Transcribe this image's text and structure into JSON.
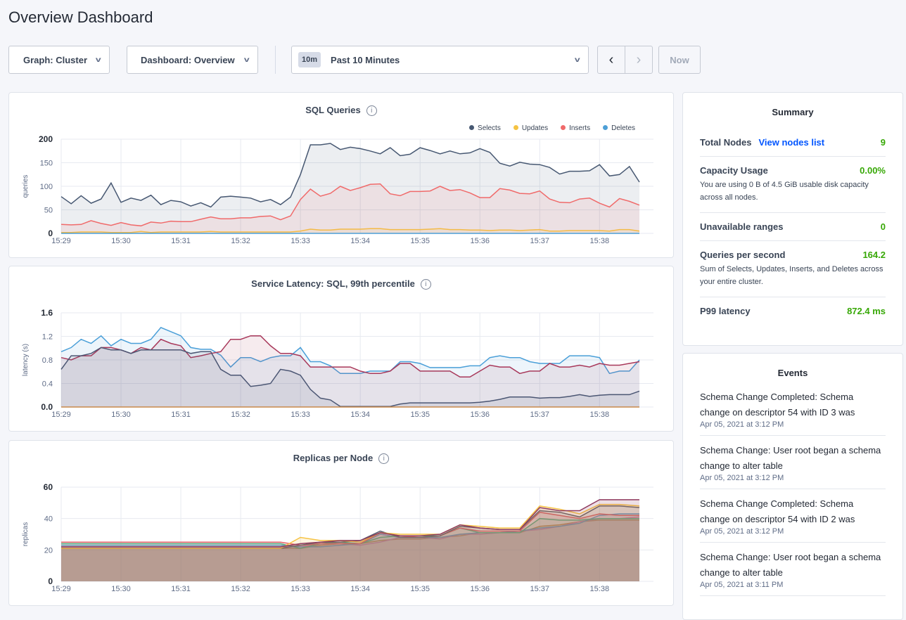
{
  "page_title": "Overview Dashboard",
  "controls": {
    "graph_label": "Graph: Cluster",
    "dashboard_label": "Dashboard: Overview",
    "time_badge": "10m",
    "time_label": "Past 10 Minutes",
    "prev": "‹",
    "next": "›",
    "now_label": "Now"
  },
  "summary": {
    "title": "Summary",
    "total_nodes": {
      "label": "Total Nodes",
      "link": "View nodes list",
      "value": "9"
    },
    "capacity": {
      "label": "Capacity Usage",
      "value": "0.00%",
      "desc": "You are using 0 B of 4.5 GiB usable disk capacity across all nodes."
    },
    "unavailable": {
      "label": "Unavailable ranges",
      "value": "0"
    },
    "qps": {
      "label": "Queries per second",
      "value": "164.2",
      "desc": "Sum of Selects, Updates, Inserts, and Deletes across your entire cluster."
    },
    "p99": {
      "label": "P99 latency",
      "value": "872.4 ms"
    }
  },
  "events": {
    "title": "Events",
    "items": [
      {
        "text": "Schema Change Completed: Schema change on descriptor 54 with ID 3 was",
        "date": "Apr 05, 2021 at 3:12 PM"
      },
      {
        "text": "Schema Change: User root began a schema change to alter table",
        "date": "Apr 05, 2021 at 3:12 PM"
      },
      {
        "text": "Schema Change Completed: Schema change on descriptor 54 with ID 2 was",
        "date": "Apr 05, 2021 at 3:12 PM"
      },
      {
        "text": "Schema Change: User root began a schema change to alter table",
        "date": "Apr 05, 2021 at 3:11 PM"
      }
    ]
  },
  "chart_data": [
    {
      "type": "area",
      "title": "SQL Queries",
      "ylabel": "queries",
      "xlim": [
        "15:29:00",
        "15:38:40"
      ],
      "ylim": [
        0,
        200
      ],
      "yticks": [
        0,
        50,
        100,
        150,
        200
      ],
      "xticks": [
        "15:29",
        "15:30",
        "15:31",
        "15:32",
        "15:33",
        "15:34",
        "15:35",
        "15:36",
        "15:37",
        "15:38"
      ],
      "grid": true,
      "legend": "top-right",
      "x": [
        "15:29:00",
        "15:29:10",
        "15:29:20",
        "15:29:30",
        "15:29:40",
        "15:29:50",
        "15:30:00",
        "15:30:10",
        "15:30:20",
        "15:30:30",
        "15:30:40",
        "15:30:50",
        "15:31:00",
        "15:31:10",
        "15:31:20",
        "15:31:30",
        "15:31:40",
        "15:31:50",
        "15:32:00",
        "15:32:10",
        "15:32:20",
        "15:32:30",
        "15:32:40",
        "15:32:50",
        "15:33:00",
        "15:33:10",
        "15:33:20",
        "15:33:30",
        "15:33:40",
        "15:33:50",
        "15:34:00",
        "15:34:10",
        "15:34:20",
        "15:34:30",
        "15:34:40",
        "15:34:50",
        "15:35:00",
        "15:35:10",
        "15:35:20",
        "15:35:30",
        "15:35:40",
        "15:35:50",
        "15:36:00",
        "15:36:10",
        "15:36:20",
        "15:36:30",
        "15:36:40",
        "15:36:50",
        "15:37:00",
        "15:37:10",
        "15:37:20",
        "15:37:30",
        "15:37:40",
        "15:37:50",
        "15:38:00",
        "15:38:10",
        "15:38:20",
        "15:38:30",
        "15:38:40"
      ],
      "series": [
        {
          "name": "Selects",
          "color": "#475872",
          "values": [
            78,
            63,
            80,
            64,
            73,
            107,
            66,
            75,
            70,
            81,
            61,
            70,
            67,
            58,
            65,
            56,
            77,
            79,
            77,
            75,
            67,
            72,
            61,
            77,
            125,
            188,
            188,
            191,
            178,
            183,
            180,
            175,
            169,
            182,
            165,
            168,
            182,
            176,
            169,
            175,
            169,
            171,
            180,
            172,
            149,
            143,
            151,
            147,
            146,
            140,
            126,
            132,
            132,
            133,
            146,
            122,
            125,
            142,
            109
          ]
        },
        {
          "name": "Updates",
          "color": "#f5c342",
          "values": [
            2,
            2,
            3,
            3,
            3,
            2,
            2,
            2,
            4,
            2,
            3,
            3,
            3,
            3,
            3,
            4,
            3,
            3,
            3,
            3,
            3,
            3,
            3,
            3,
            5,
            9,
            7,
            7,
            9,
            9,
            9,
            10,
            10,
            8,
            8,
            8,
            8,
            9,
            10,
            8,
            8,
            7,
            7,
            6,
            7,
            7,
            6,
            7,
            8,
            5,
            5,
            6,
            6,
            6,
            6,
            5,
            8,
            8,
            5
          ]
        },
        {
          "name": "Inserts",
          "color": "#f06a6a",
          "values": [
            19,
            18,
            19,
            27,
            21,
            17,
            23,
            18,
            16,
            24,
            22,
            26,
            25,
            25,
            30,
            35,
            31,
            31,
            33,
            33,
            36,
            37,
            29,
            37,
            72,
            94,
            79,
            85,
            100,
            91,
            97,
            104,
            105,
            84,
            80,
            89,
            89,
            90,
            100,
            91,
            93,
            86,
            76,
            76,
            95,
            92,
            85,
            84,
            90,
            73,
            66,
            65,
            73,
            75,
            64,
            56,
            74,
            68,
            60
          ]
        },
        {
          "name": "Deletes",
          "color": "#4d9fd6",
          "values": [
            0,
            0,
            0,
            0,
            0,
            0,
            0,
            0,
            0,
            0,
            0,
            0,
            0,
            0,
            0,
            0,
            0,
            0,
            0,
            0,
            0,
            0,
            0,
            0,
            0,
            0,
            0,
            0,
            0,
            0,
            0,
            0,
            0,
            0,
            0,
            0,
            0,
            0,
            0,
            0,
            0,
            0,
            0,
            0,
            0,
            0,
            0,
            0,
            0,
            0,
            0,
            0,
            0,
            0,
            0,
            0,
            0,
            0,
            0
          ]
        }
      ]
    },
    {
      "type": "area",
      "title": "Service Latency: SQL, 99th percentile",
      "ylabel": "latency (s)",
      "xlim": [
        "15:29:00",
        "15:38:40"
      ],
      "ylim": [
        0,
        1.6
      ],
      "yticks": [
        0,
        0.4,
        0.8,
        1.2,
        1.6
      ],
      "ytick_labels": [
        "0.0",
        "0.4",
        "0.8",
        "1.2",
        "1.6"
      ],
      "xticks": [
        "15:29",
        "15:30",
        "15:31",
        "15:32",
        "15:33",
        "15:34",
        "15:35",
        "15:36",
        "15:37",
        "15:38"
      ],
      "grid": true,
      "x": [
        "15:29:00",
        "15:29:10",
        "15:29:20",
        "15:29:30",
        "15:29:40",
        "15:29:50",
        "15:30:00",
        "15:30:10",
        "15:30:20",
        "15:30:30",
        "15:30:40",
        "15:30:50",
        "15:31:00",
        "15:31:10",
        "15:31:20",
        "15:31:30",
        "15:31:40",
        "15:31:50",
        "15:32:00",
        "15:32:10",
        "15:32:20",
        "15:32:30",
        "15:32:40",
        "15:32:50",
        "15:33:00",
        "15:33:10",
        "15:33:20",
        "15:33:30",
        "15:33:40",
        "15:33:50",
        "15:34:00",
        "15:34:10",
        "15:34:20",
        "15:34:30",
        "15:34:40",
        "15:34:50",
        "15:35:00",
        "15:35:10",
        "15:35:20",
        "15:35:30",
        "15:35:40",
        "15:35:50",
        "15:36:00",
        "15:36:10",
        "15:36:20",
        "15:36:30",
        "15:36:40",
        "15:36:50",
        "15:37:00",
        "15:37:10",
        "15:37:20",
        "15:37:30",
        "15:37:40",
        "15:37:50",
        "15:38:00",
        "15:38:10",
        "15:38:20",
        "15:38:30",
        "15:38:40"
      ],
      "series": [
        {
          "color": "#4a9fd8",
          "values": [
            0.94,
            1.01,
            1.15,
            1.08,
            1.21,
            1.04,
            1.15,
            1.08,
            1.08,
            1.15,
            1.35,
            1.28,
            1.21,
            1.01,
            0.98,
            0.98,
            0.88,
            0.68,
            0.84,
            0.84,
            0.77,
            0.84,
            0.87,
            0.87,
            1.01,
            0.77,
            0.77,
            0.7,
            0.57,
            0.57,
            0.57,
            0.61,
            0.61,
            0.61,
            0.77,
            0.77,
            0.74,
            0.67,
            0.67,
            0.67,
            0.67,
            0.7,
            0.7,
            0.84,
            0.87,
            0.84,
            0.84,
            0.77,
            0.74,
            0.74,
            0.74,
            0.87,
            0.87,
            0.87,
            0.84,
            0.57,
            0.61,
            0.61,
            0.8
          ]
        },
        {
          "color": "#a8385a",
          "values": [
            0.84,
            0.8,
            0.87,
            0.87,
            1.01,
            1.01,
            0.97,
            0.91,
            1.01,
            0.97,
            1.15,
            1.08,
            1.04,
            0.84,
            0.87,
            0.91,
            0.94,
            1.15,
            1.15,
            1.21,
            1.21,
            1.04,
            0.91,
            0.91,
            0.87,
            0.68,
            0.68,
            0.68,
            0.68,
            0.68,
            0.61,
            0.57,
            0.57,
            0.61,
            0.74,
            0.74,
            0.61,
            0.61,
            0.61,
            0.61,
            0.51,
            0.51,
            0.61,
            0.71,
            0.68,
            0.68,
            0.57,
            0.61,
            0.61,
            0.74,
            0.68,
            0.68,
            0.71,
            0.68,
            0.74,
            0.71,
            0.71,
            0.74,
            0.77
          ]
        },
        {
          "color": "#4b5673",
          "values": [
            0.64,
            0.87,
            0.87,
            0.91,
            1.01,
            0.97,
            0.97,
            0.91,
            0.97,
            0.97,
            0.97,
            0.97,
            0.97,
            0.91,
            0.94,
            0.94,
            0.64,
            0.54,
            0.54,
            0.35,
            0.37,
            0.4,
            0.64,
            0.61,
            0.54,
            0.3,
            0.15,
            0.12,
            0.01,
            0.01,
            0.01,
            0.01,
            0.01,
            0.01,
            0.05,
            0.07,
            0.07,
            0.07,
            0.07,
            0.07,
            0.07,
            0.07,
            0.08,
            0.1,
            0.13,
            0.17,
            0.17,
            0.17,
            0.15,
            0.16,
            0.16,
            0.18,
            0.21,
            0.18,
            0.2,
            0.21,
            0.21,
            0.21,
            0.27
          ]
        },
        {
          "color": "#c8884a",
          "values": [
            0,
            0,
            0,
            0,
            0,
            0,
            0,
            0,
            0,
            0,
            0,
            0,
            0,
            0,
            0,
            0,
            0,
            0,
            0,
            0,
            0,
            0,
            0,
            0,
            0,
            0,
            0,
            0,
            0,
            0,
            0,
            0,
            0,
            0,
            0,
            0,
            0,
            0,
            0,
            0,
            0,
            0,
            0,
            0,
            0,
            0,
            0,
            0,
            0,
            0,
            0,
            0,
            0,
            0,
            0,
            0,
            0,
            0,
            0
          ]
        }
      ]
    },
    {
      "type": "area",
      "title": "Replicas per Node",
      "ylabel": "replicas",
      "xlim": [
        "15:29:00",
        "15:38:40"
      ],
      "ylim": [
        0,
        60
      ],
      "yticks": [
        0,
        20,
        40,
        60
      ],
      "xticks": [
        "15:29",
        "15:30",
        "15:31",
        "15:32",
        "15:33",
        "15:34",
        "15:35",
        "15:36",
        "15:37",
        "15:38"
      ],
      "grid": true,
      "x": [
        "15:29:00",
        "15:29:20",
        "15:29:40",
        "15:30:00",
        "15:30:20",
        "15:30:40",
        "15:31:00",
        "15:31:20",
        "15:31:40",
        "15:32:00",
        "15:32:20",
        "15:32:40",
        "15:33:00",
        "15:33:20",
        "15:33:40",
        "15:34:00",
        "15:34:20",
        "15:34:40",
        "15:35:00",
        "15:35:20",
        "15:35:40",
        "15:36:00",
        "15:36:20",
        "15:36:40",
        "15:37:00",
        "15:37:20",
        "15:37:40",
        "15:38:00",
        "15:38:20",
        "15:38:40"
      ],
      "series": [
        {
          "color": "#c8904a",
          "values": [
            21,
            21,
            21,
            21,
            21,
            21,
            21,
            21,
            21,
            21,
            21,
            21,
            21,
            23,
            24,
            24,
            26,
            27,
            27,
            28,
            29,
            31,
            31,
            31,
            35,
            36,
            38,
            39,
            39,
            39
          ]
        },
        {
          "color": "#e07cb8",
          "values": [
            22,
            22,
            22,
            22,
            22,
            22,
            22,
            22,
            22,
            22,
            22,
            22,
            22,
            24,
            24,
            23,
            25,
            28,
            28,
            27,
            30,
            30,
            31,
            32,
            33,
            35,
            38,
            40,
            40,
            41
          ]
        },
        {
          "color": "#5a9fd4",
          "values": [
            23,
            23,
            23,
            23,
            23,
            23,
            23,
            23,
            23,
            23,
            23,
            23,
            22,
            22,
            23,
            24,
            30,
            28,
            28,
            28,
            30,
            31,
            31,
            32,
            34,
            35,
            37,
            42,
            43,
            43
          ]
        },
        {
          "color": "#3dbf8a",
          "values": [
            24,
            24,
            24,
            24,
            24,
            24,
            24,
            24,
            24,
            24,
            24,
            24,
            21,
            24,
            25,
            24,
            28,
            29,
            29,
            29,
            34,
            31,
            31,
            31,
            40,
            39,
            39,
            40,
            40,
            40
          ]
        },
        {
          "color": "#e8636b",
          "values": [
            25,
            25,
            25,
            25,
            25,
            25,
            25,
            25,
            25,
            25,
            25,
            25,
            23,
            24,
            24,
            24,
            31,
            29,
            28,
            29,
            34,
            32,
            32,
            32,
            44,
            42,
            40,
            43,
            42,
            42
          ]
        },
        {
          "color": "#555c6b",
          "values": [
            21,
            21,
            21,
            21,
            21,
            21,
            21,
            21,
            21,
            21,
            21,
            21,
            23,
            25,
            25,
            26,
            32,
            28,
            28,
            29,
            35,
            34,
            33,
            33,
            45,
            44,
            41,
            48,
            48,
            47
          ]
        },
        {
          "color": "#f6c342",
          "values": [
            21,
            21,
            21,
            21,
            21,
            21,
            21,
            21,
            21,
            21,
            21,
            21,
            28,
            26,
            26,
            25,
            31,
            30,
            30,
            30,
            36,
            35,
            34,
            34,
            48,
            46,
            43,
            49,
            49,
            48
          ]
        },
        {
          "color": "#8e3a5e",
          "values": [
            22,
            22,
            22,
            22,
            22,
            22,
            22,
            22,
            22,
            22,
            22,
            22,
            24,
            25,
            26,
            26,
            31,
            29,
            29,
            30,
            36,
            34,
            33,
            33,
            47,
            45,
            45,
            52,
            52,
            52
          ]
        }
      ]
    }
  ]
}
